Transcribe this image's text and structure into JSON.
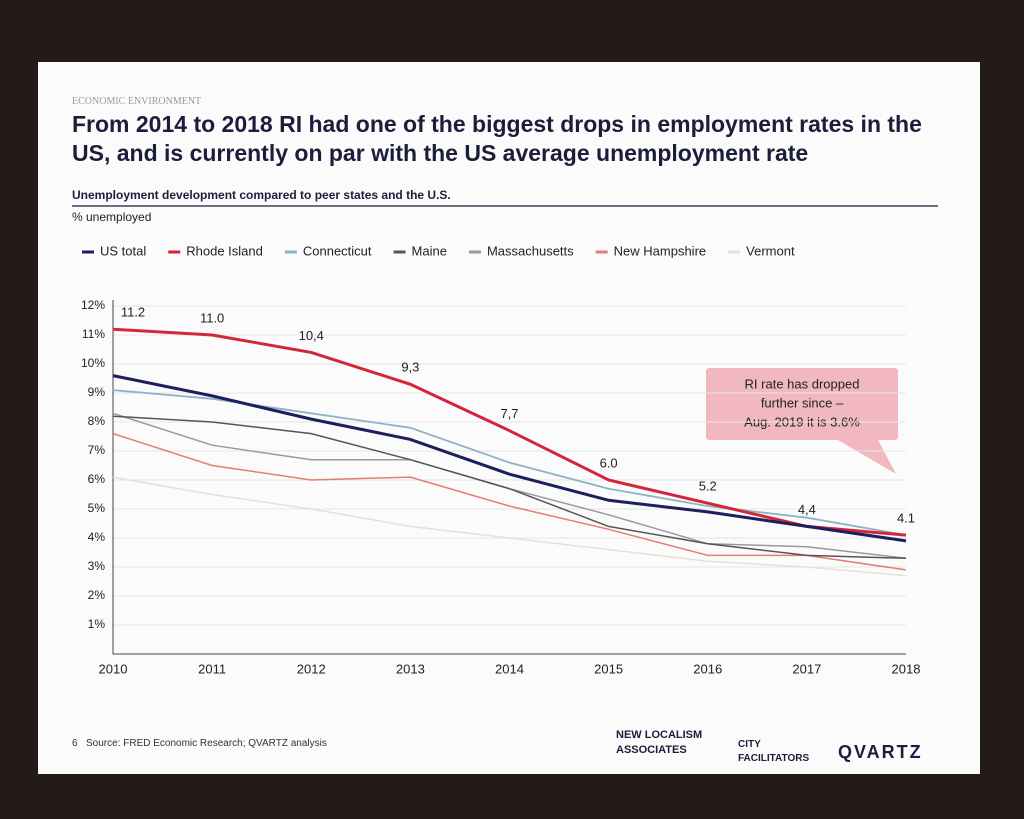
{
  "slide": {
    "section": "ECONOMIC ENVIRONMENT",
    "title": "From 2014 to 2018 RI had one of the biggest drops in employment rates in the US, and is currently on par with the US average unemployment rate",
    "page_number": "6",
    "source": "Source: FRED Economic Research; QVARTZ analysis",
    "logos": [
      "NEW LOCALISM ASSOCIATES",
      "CITY FACILITATORS",
      "QVARTZ"
    ]
  },
  "chart_data": {
    "type": "line",
    "subtitle": "Unemployment development compared to peer states and the U.S.",
    "y_label": "% unemployed",
    "annotation": [
      "RI rate has dropped",
      "further since –",
      "Aug. 2019 it is 3.6%"
    ],
    "x": [
      2010,
      2011,
      2012,
      2013,
      2014,
      2015,
      2016,
      2017,
      2018
    ],
    "xlim": [
      2010,
      2018
    ],
    "ylim": [
      0,
      12
    ],
    "yticks": [
      {
        "value": 1,
        "label": "1%"
      },
      {
        "value": 2,
        "label": "2%"
      },
      {
        "value": 3,
        "label": "3%"
      },
      {
        "value": 4,
        "label": "4%"
      },
      {
        "value": 5,
        "label": "5%"
      },
      {
        "value": 6,
        "label": "6%"
      },
      {
        "value": 7,
        "label": "7%"
      },
      {
        "value": 8,
        "label": "8%"
      },
      {
        "value": 9,
        "label": "9%"
      },
      {
        "value": 10,
        "label": "10%"
      },
      {
        "value": 11,
        "label": "11%"
      },
      {
        "value": 12,
        "label": "12%"
      }
    ],
    "grid": true,
    "series": [
      {
        "name": "US total",
        "color": "#1c1f5e",
        "width": 3,
        "values": [
          9.6,
          8.9,
          8.1,
          7.4,
          6.2,
          5.3,
          4.9,
          4.4,
          3.9
        ]
      },
      {
        "name": "Rhode Island",
        "color": "#d3263b",
        "width": 3,
        "values": [
          11.2,
          11.0,
          10.4,
          9.3,
          7.7,
          6.0,
          5.2,
          4.4,
          4.1
        ],
        "value_labels": [
          "11.2",
          "11.0",
          "10,4",
          "9,3",
          "7,7",
          "6.0",
          "5.2",
          "4,4",
          "4.1"
        ]
      },
      {
        "name": "Connecticut",
        "color": "#8db4c4",
        "width": 1.8,
        "values": [
          9.1,
          8.8,
          8.3,
          7.8,
          6.6,
          5.7,
          5.1,
          4.7,
          4.1
        ]
      },
      {
        "name": "Maine",
        "color": "#555555",
        "width": 1.5,
        "values": [
          8.2,
          8.0,
          7.6,
          6.7,
          5.7,
          4.4,
          3.8,
          3.4,
          3.3
        ]
      },
      {
        "name": "Massachusetts",
        "color": "#9a9a9a",
        "width": 1.5,
        "values": [
          8.3,
          7.2,
          6.7,
          6.7,
          5.7,
          4.8,
          3.8,
          3.7,
          3.3
        ]
      },
      {
        "name": "New Hampshire",
        "color": "#e0806f",
        "width": 1.5,
        "values": [
          7.6,
          6.5,
          6.0,
          6.1,
          5.1,
          4.3,
          3.4,
          3.4,
          2.9
        ]
      },
      {
        "name": "Vermont",
        "color": "#e8e1cf",
        "width": 1.5,
        "values": [
          6.1,
          5.5,
          5.0,
          4.4,
          4.0,
          3.6,
          3.2,
          3.0,
          2.7
        ]
      }
    ]
  }
}
